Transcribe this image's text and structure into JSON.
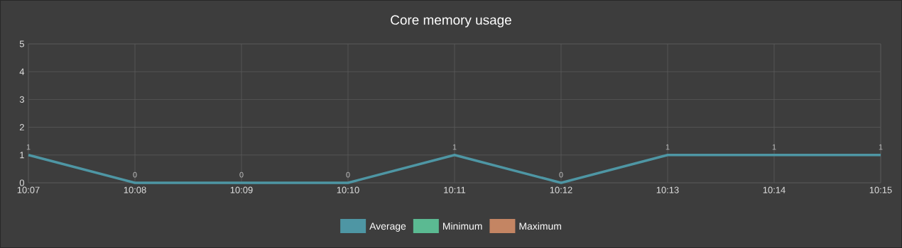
{
  "chart_data": {
    "type": "line",
    "title": "Core memory usage",
    "categories": [
      "10:07",
      "10:08",
      "10:09",
      "10:10",
      "10:11",
      "10:12",
      "10:13",
      "10:14",
      "10:15"
    ],
    "series": [
      {
        "name": "Average",
        "color": "#4e96a4",
        "values": [
          1,
          0,
          0,
          0,
          1,
          0,
          1,
          1,
          1
        ]
      },
      {
        "name": "Minimum",
        "color": "#5bba92",
        "values": [
          null,
          null,
          null,
          null,
          null,
          null,
          null,
          null,
          null
        ]
      },
      {
        "name": "Maximum",
        "color": "#c48563",
        "values": [
          null,
          null,
          null,
          null,
          null,
          null,
          null,
          null,
          null
        ]
      }
    ],
    "ylim": [
      0,
      5
    ],
    "yticks": [
      0,
      1,
      2,
      3,
      4,
      5
    ],
    "grid": true,
    "legend": "bottom",
    "data_labels": true
  }
}
